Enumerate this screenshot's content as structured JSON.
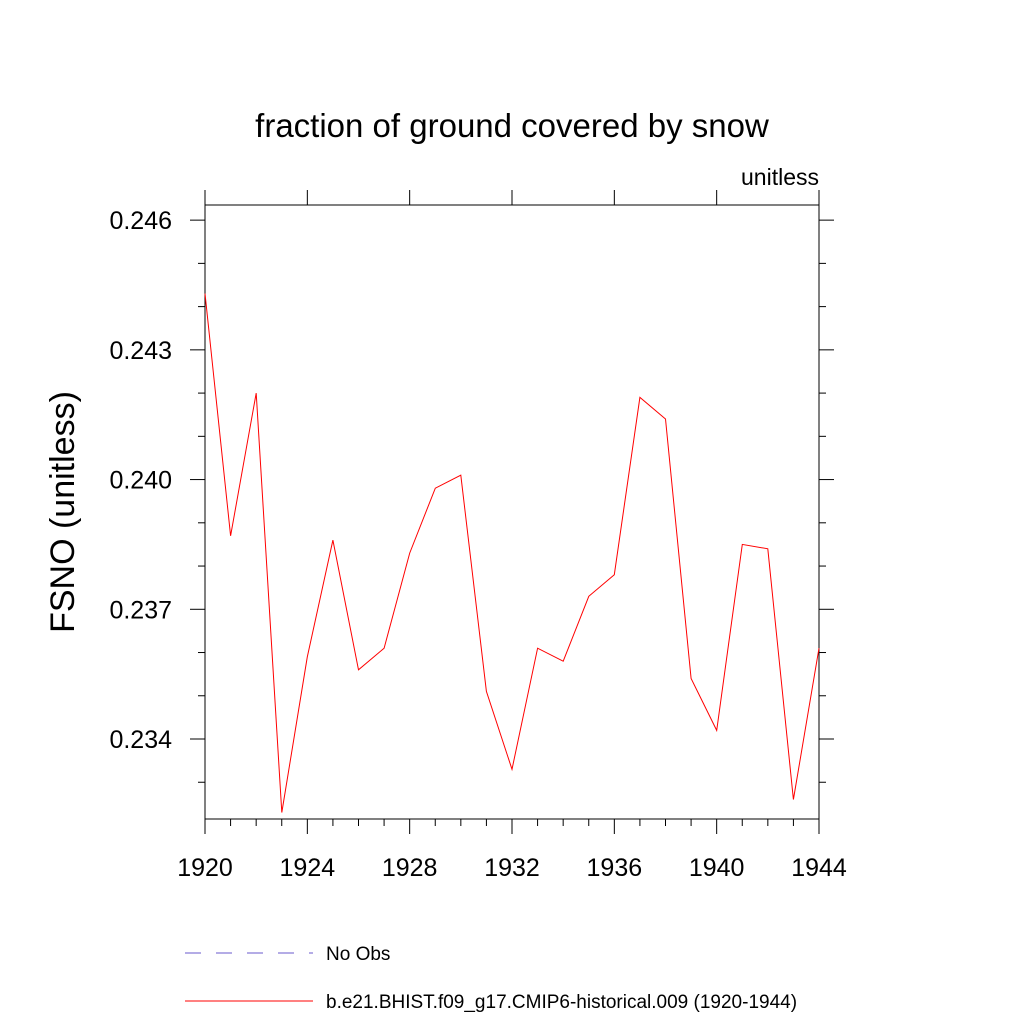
{
  "chart_data": {
    "type": "line",
    "title": "fraction of ground covered by snow",
    "units_label": "unitless",
    "ylabel": "FSNO  (unitless)",
    "xlabel": "",
    "xlim": [
      1920,
      1944
    ],
    "ylim": [
      0.23215,
      0.24635
    ],
    "x_ticks": [
      1920,
      1924,
      1928,
      1932,
      1936,
      1940,
      1944
    ],
    "x_tick_labels": [
      "1920",
      "1924",
      "1928",
      "1932",
      "1936",
      "1940",
      "1944"
    ],
    "y_ticks": [
      0.234,
      0.237,
      0.24,
      0.243,
      0.246
    ],
    "y_tick_labels": [
      "0.234",
      "0.237",
      "0.240",
      "0.243",
      "0.246"
    ],
    "grid": false,
    "legend_position": "bottom",
    "series": [
      {
        "name": "b.e21.BHIST.f09_g17.CMIP6-historical.009 (1920-1944)",
        "color": "#ff0000",
        "style": "solid",
        "x": [
          1920,
          1921,
          1922,
          1923,
          1924,
          1925,
          1926,
          1927,
          1928,
          1929,
          1930,
          1931,
          1932,
          1933,
          1934,
          1935,
          1936,
          1937,
          1938,
          1939,
          1940,
          1941,
          1942,
          1943,
          1944
        ],
        "values": [
          0.2443,
          0.2387,
          0.242,
          0.2323,
          0.2359,
          0.2386,
          0.2356,
          0.2361,
          0.2383,
          0.2398,
          0.2401,
          0.2351,
          0.2333,
          0.2361,
          0.2358,
          0.2373,
          0.2378,
          0.2419,
          0.2414,
          0.2354,
          0.2342,
          0.2385,
          0.2384,
          0.2326,
          0.2361
        ]
      }
    ],
    "legend": [
      {
        "label": "No Obs",
        "color": "#6a5acd",
        "style": "dashed"
      },
      {
        "label": "b.e21.BHIST.f09_g17.CMIP6-historical.009 (1920-1944)",
        "color": "#ff0000",
        "style": "solid"
      }
    ]
  }
}
